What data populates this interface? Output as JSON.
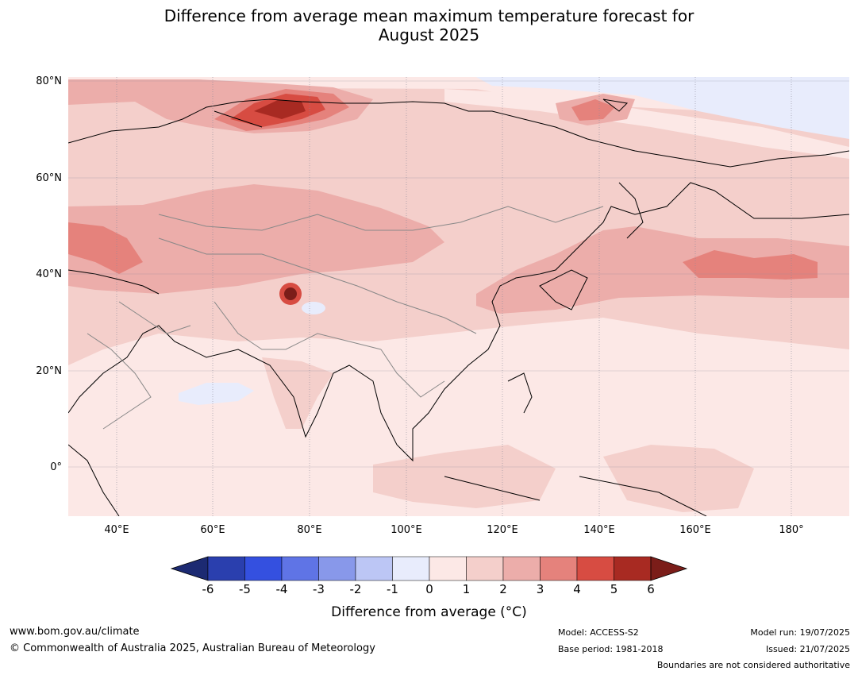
{
  "title_line1": "Difference from average mean maximum temperature forecast for",
  "title_line2": "August 2025",
  "lat_labels": [
    "80°N",
    "60°N",
    "40°N",
    "20°N",
    "0°"
  ],
  "lon_labels": [
    "40°E",
    "60°E",
    "80°E",
    "100°E",
    "120°E",
    "140°E",
    "160°E",
    "180°"
  ],
  "colorbar": {
    "label": "Difference from average (°C)",
    "ticks": [
      "-6",
      "-5",
      "-4",
      "-3",
      "-2",
      "-1",
      "0",
      "1",
      "2",
      "3",
      "4",
      "5",
      "6"
    ],
    "colors": [
      "#1c2a72",
      "#2a3fae",
      "#3450e0",
      "#5f74e6",
      "#8898ea",
      "#bcc6f5",
      "#e8ecfc",
      "#fce8e6",
      "#f4cfcb",
      "#ecadaa",
      "#e5827c",
      "#d74c42",
      "#a82a22",
      "#7b1d19"
    ]
  },
  "footer": {
    "website": "www.bom.gov.au/climate",
    "copyright": "© Commonwealth of Australia 2025, Australian Bureau of Meteorology",
    "model": "Model: ACCESS-S2",
    "base_period": "Base period: 1981-2018",
    "model_run": "Model run: 19/07/2025",
    "issued": "Issued: 21/07/2025",
    "disclaimer": "Boundaries are not considered authoritative"
  }
}
